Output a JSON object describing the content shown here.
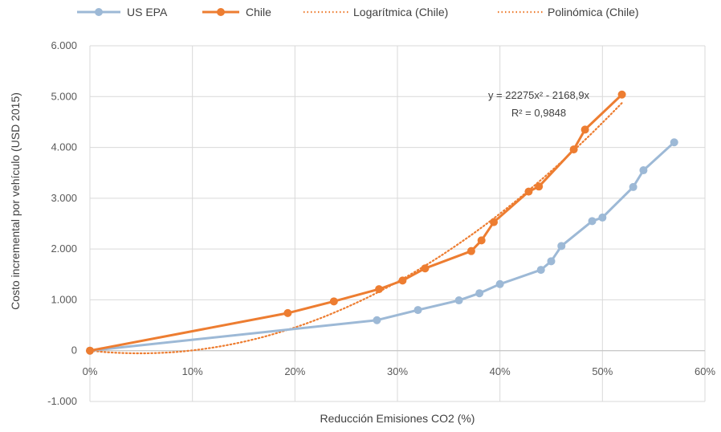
{
  "chart_data": {
    "type": "line",
    "title": "",
    "xlabel": "Reducción Emisiones CO2 (%)",
    "ylabel": "Costo incremental por vehículo (USD 2015)",
    "xlim": [
      0,
      0.6
    ],
    "ylim": [
      -1000,
      6000
    ],
    "x_ticks": [
      0,
      0.1,
      0.2,
      0.3,
      0.4,
      0.5,
      0.6
    ],
    "x_tick_labels": [
      "0%",
      "10%",
      "20%",
      "30%",
      "40%",
      "50%",
      "60%"
    ],
    "y_ticks": [
      -1000,
      0,
      1000,
      2000,
      3000,
      4000,
      5000,
      6000
    ],
    "y_tick_labels": [
      "-1.000",
      "0",
      "1.000",
      "2.000",
      "3.000",
      "4.000",
      "5.000",
      "6.000"
    ],
    "grid": "vertical and horizontal",
    "legend_position": "top",
    "series": [
      {
        "name": "US EPA",
        "color": "#9DB9D6",
        "style": "line-markers",
        "x": [
          0,
          0.28,
          0.32,
          0.36,
          0.38,
          0.4,
          0.44,
          0.45,
          0.46,
          0.49,
          0.5,
          0.53,
          0.54,
          0.57
        ],
        "y": [
          0,
          600,
          800,
          990,
          1130,
          1310,
          1590,
          1760,
          2060,
          2550,
          2620,
          3220,
          3550,
          4100
        ]
      },
      {
        "name": "Chile",
        "color": "#ED7D31",
        "style": "line-markers",
        "x": [
          0,
          0.193,
          0.238,
          0.282,
          0.305,
          0.327,
          0.372,
          0.382,
          0.394,
          0.428,
          0.438,
          0.472,
          0.483,
          0.519
        ],
        "y": [
          0,
          740,
          970,
          1210,
          1380,
          1620,
          1960,
          2170,
          2530,
          3130,
          3230,
          3960,
          4350,
          5040
        ]
      },
      {
        "name": "Logarítmica (Chile)",
        "color": "#ED7D31",
        "style": "dotted-trendline"
      },
      {
        "name": "Polinómica (Chile)",
        "color": "#ED7D31",
        "style": "dotted-trendline",
        "coefficients": [
          22275,
          -2168.9
        ],
        "x_range": [
          0,
          0.519
        ]
      }
    ],
    "annotations": [
      {
        "text": "y = 22275x² - 2168,9x"
      },
      {
        "text": "R² = 0,9848"
      }
    ]
  }
}
